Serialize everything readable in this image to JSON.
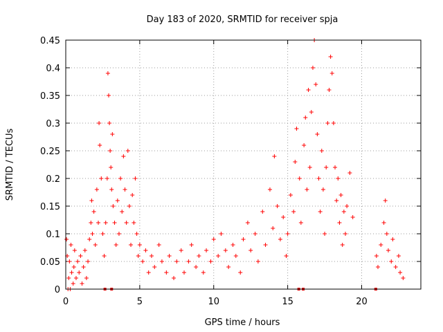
{
  "chart_data": {
    "type": "scatter",
    "title": "Day 183 of 2020, SRMTID for receiver spja",
    "xlabel": "GPS time / hours",
    "ylabel": "SRMTID / TECUs",
    "xlim": [
      0,
      24
    ],
    "ylim": [
      0,
      0.45
    ],
    "grid": true,
    "x_ticks": [
      0,
      5,
      10,
      15,
      20
    ],
    "x_tick_labels": [
      "0",
      "5",
      "10",
      "15",
      "20"
    ],
    "y_ticks": [
      0,
      0.05,
      0.1,
      0.15,
      0.2,
      0.25,
      0.3,
      0.35,
      0.4,
      0.45
    ],
    "y_tick_labels": [
      "0",
      "0.05",
      "0.1",
      "0.15",
      "0.2",
      "0.25",
      "0.3",
      "0.35",
      "0.4",
      "0.45"
    ],
    "marker_color": "#ff0000",
    "marker": "plus",
    "baseline_markers_x": [
      2.65,
      3.1,
      15.75,
      16.05,
      20.95
    ],
    "series": [
      {
        "points": [
          [
            0.05,
            0.09
          ],
          [
            0.1,
            0.06
          ],
          [
            0.15,
            0.0
          ],
          [
            0.2,
            0.02
          ],
          [
            0.25,
            0.05
          ],
          [
            0.3,
            0.0
          ],
          [
            0.35,
            0.08
          ],
          [
            0.4,
            0.03
          ],
          [
            0.5,
            0.01
          ],
          [
            0.55,
            0.04
          ],
          [
            0.6,
            0.07
          ],
          [
            0.7,
            0.02
          ],
          [
            0.8,
            0.05
          ],
          [
            0.9,
            0.03
          ],
          [
            1.0,
            0.06
          ],
          [
            1.1,
            0.01
          ],
          [
            1.2,
            0.04
          ],
          [
            1.3,
            0.07
          ],
          [
            1.4,
            0.02
          ],
          [
            1.5,
            0.05
          ],
          [
            1.6,
            0.09
          ],
          [
            1.7,
            0.12
          ],
          [
            1.75,
            0.16
          ],
          [
            1.8,
            0.1
          ],
          [
            1.9,
            0.14
          ],
          [
            2.0,
            0.08
          ],
          [
            2.1,
            0.18
          ],
          [
            2.2,
            0.12
          ],
          [
            2.25,
            0.3
          ],
          [
            2.3,
            0.26
          ],
          [
            2.4,
            0.2
          ],
          [
            2.5,
            0.1
          ],
          [
            2.6,
            0.06
          ],
          [
            2.7,
            0.12
          ],
          [
            2.8,
            0.2
          ],
          [
            2.85,
            0.39
          ],
          [
            2.9,
            0.35
          ],
          [
            2.95,
            0.3
          ],
          [
            3.0,
            0.25
          ],
          [
            3.05,
            0.22
          ],
          [
            3.1,
            0.18
          ],
          [
            3.15,
            0.28
          ],
          [
            3.2,
            0.15
          ],
          [
            3.3,
            0.12
          ],
          [
            3.4,
            0.08
          ],
          [
            3.5,
            0.16
          ],
          [
            3.6,
            0.1
          ],
          [
            3.7,
            0.2
          ],
          [
            3.8,
            0.14
          ],
          [
            3.9,
            0.24
          ],
          [
            4.0,
            0.18
          ],
          [
            4.1,
            0.12
          ],
          [
            4.2,
            0.25
          ],
          [
            4.3,
            0.15
          ],
          [
            4.4,
            0.08
          ],
          [
            4.5,
            0.17
          ],
          [
            4.6,
            0.12
          ],
          [
            4.7,
            0.2
          ],
          [
            4.8,
            0.1
          ],
          [
            4.9,
            0.06
          ],
          [
            5.0,
            0.08
          ],
          [
            5.2,
            0.05
          ],
          [
            5.4,
            0.07
          ],
          [
            5.6,
            0.03
          ],
          [
            5.8,
            0.06
          ],
          [
            6.0,
            0.04
          ],
          [
            6.3,
            0.08
          ],
          [
            6.5,
            0.05
          ],
          [
            6.8,
            0.03
          ],
          [
            7.0,
            0.06
          ],
          [
            7.3,
            0.02
          ],
          [
            7.5,
            0.05
          ],
          [
            7.8,
            0.07
          ],
          [
            8.0,
            0.03
          ],
          [
            8.3,
            0.05
          ],
          [
            8.5,
            0.08
          ],
          [
            8.8,
            0.04
          ],
          [
            9.0,
            0.06
          ],
          [
            9.3,
            0.03
          ],
          [
            9.5,
            0.07
          ],
          [
            9.8,
            0.05
          ],
          [
            10.0,
            0.09
          ],
          [
            10.3,
            0.06
          ],
          [
            10.5,
            0.1
          ],
          [
            10.8,
            0.07
          ],
          [
            11.0,
            0.04
          ],
          [
            11.3,
            0.08
          ],
          [
            11.5,
            0.06
          ],
          [
            11.8,
            0.03
          ],
          [
            12.0,
            0.09
          ],
          [
            12.3,
            0.12
          ],
          [
            12.5,
            0.07
          ],
          [
            12.8,
            0.1
          ],
          [
            13.0,
            0.05
          ],
          [
            13.3,
            0.14
          ],
          [
            13.5,
            0.08
          ],
          [
            13.8,
            0.18
          ],
          [
            14.0,
            0.11
          ],
          [
            14.1,
            0.24
          ],
          [
            14.3,
            0.15
          ],
          [
            14.5,
            0.09
          ],
          [
            14.7,
            0.13
          ],
          [
            14.9,
            0.06
          ],
          [
            15.0,
            0.1
          ],
          [
            15.2,
            0.17
          ],
          [
            15.4,
            0.14
          ],
          [
            15.5,
            0.23
          ],
          [
            15.6,
            0.29
          ],
          [
            15.8,
            0.2
          ],
          [
            15.9,
            0.12
          ],
          [
            16.1,
            0.26
          ],
          [
            16.2,
            0.31
          ],
          [
            16.3,
            0.18
          ],
          [
            16.4,
            0.36
          ],
          [
            16.5,
            0.22
          ],
          [
            16.6,
            0.32
          ],
          [
            16.7,
            0.4
          ],
          [
            16.8,
            0.45
          ],
          [
            16.9,
            0.37
          ],
          [
            17.0,
            0.28
          ],
          [
            17.1,
            0.2
          ],
          [
            17.2,
            0.14
          ],
          [
            17.3,
            0.25
          ],
          [
            17.4,
            0.18
          ],
          [
            17.5,
            0.1
          ],
          [
            17.6,
            0.22
          ],
          [
            17.7,
            0.3
          ],
          [
            17.8,
            0.36
          ],
          [
            17.9,
            0.42
          ],
          [
            18.0,
            0.39
          ],
          [
            18.1,
            0.3
          ],
          [
            18.2,
            0.22
          ],
          [
            18.3,
            0.16
          ],
          [
            18.4,
            0.2
          ],
          [
            18.5,
            0.12
          ],
          [
            18.6,
            0.17
          ],
          [
            18.7,
            0.08
          ],
          [
            18.8,
            0.14
          ],
          [
            18.9,
            0.1
          ],
          [
            19.0,
            0.15
          ],
          [
            19.2,
            0.21
          ],
          [
            19.4,
            0.13
          ],
          [
            21.0,
            0.06
          ],
          [
            21.1,
            0.04
          ],
          [
            21.3,
            0.08
          ],
          [
            21.5,
            0.12
          ],
          [
            21.6,
            0.16
          ],
          [
            21.7,
            0.1
          ],
          [
            21.8,
            0.07
          ],
          [
            22.0,
            0.05
          ],
          [
            22.1,
            0.09
          ],
          [
            22.3,
            0.04
          ],
          [
            22.5,
            0.06
          ],
          [
            22.6,
            0.03
          ],
          [
            22.8,
            0.02
          ]
        ]
      }
    ]
  }
}
